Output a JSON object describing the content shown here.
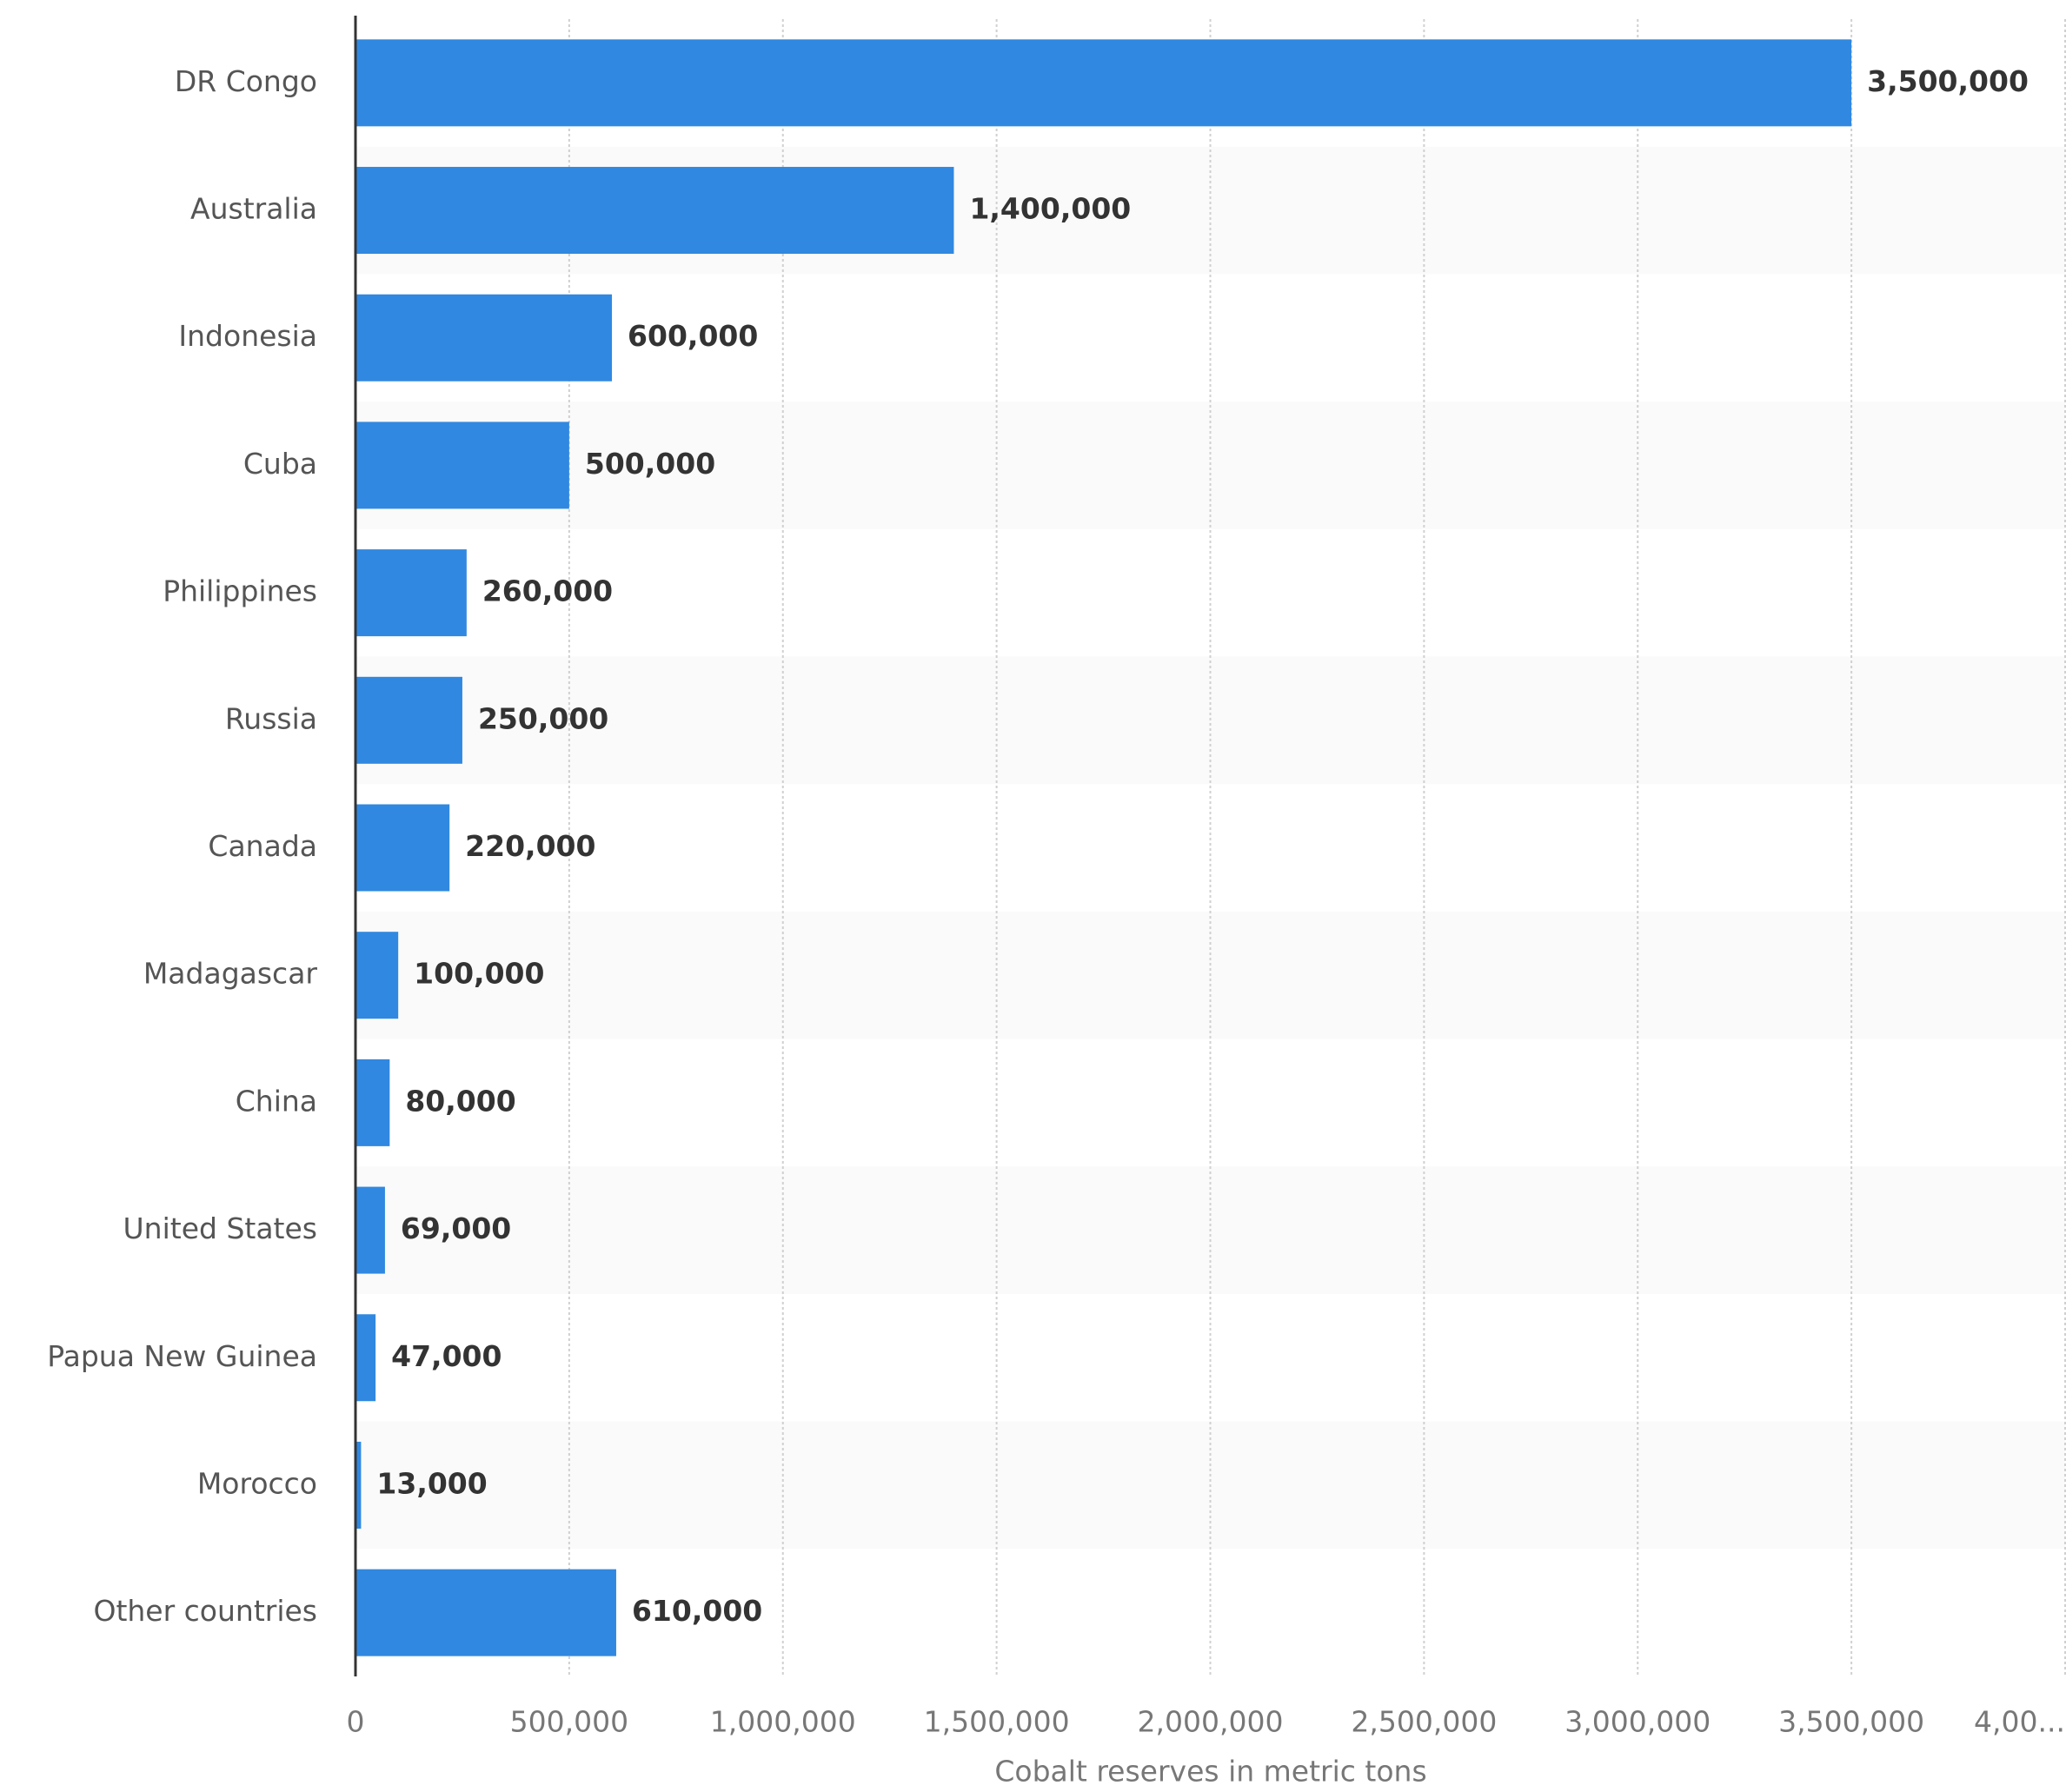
{
  "chart_data": {
    "type": "bar",
    "orientation": "horizontal",
    "x_label": "Cobalt reserves in metric tons",
    "categories": [
      "DR Congo",
      "Australia",
      "Indonesia",
      "Cuba",
      "Philippines",
      "Russia",
      "Canada",
      "Madagascar",
      "China",
      "United States",
      "Papua New Guinea",
      "Morocco",
      "Other countries"
    ],
    "values": [
      3500000,
      1400000,
      600000,
      500000,
      260000,
      250000,
      220000,
      100000,
      80000,
      69000,
      47000,
      13000,
      610000
    ],
    "value_labels": [
      "3,500,000",
      "1,400,000",
      "600,000",
      "500,000",
      "260,000",
      "250,000",
      "220,000",
      "100,000",
      "80,000",
      "69,000",
      "47,000",
      "13,000",
      "610,000"
    ],
    "color": "#3088e0",
    "xlim": [
      0,
      4000000
    ],
    "xticks": [
      0,
      {
        "value": 500000,
        "label": "500,000"
      },
      {
        "value": 1000000,
        "label": "1,000,000"
      },
      {
        "value": 1500000,
        "label": "1,500,000"
      },
      {
        "value": 2000000,
        "label": "2,000,000"
      },
      {
        "value": 2500000,
        "label": "2,500,000"
      },
      {
        "value": 3000000,
        "label": "3,000,000"
      },
      {
        "value": 3500000,
        "label": "3,500,000"
      },
      {
        "value": 4000000,
        "label": "4,00..."
      }
    ],
    "grid": true
  }
}
